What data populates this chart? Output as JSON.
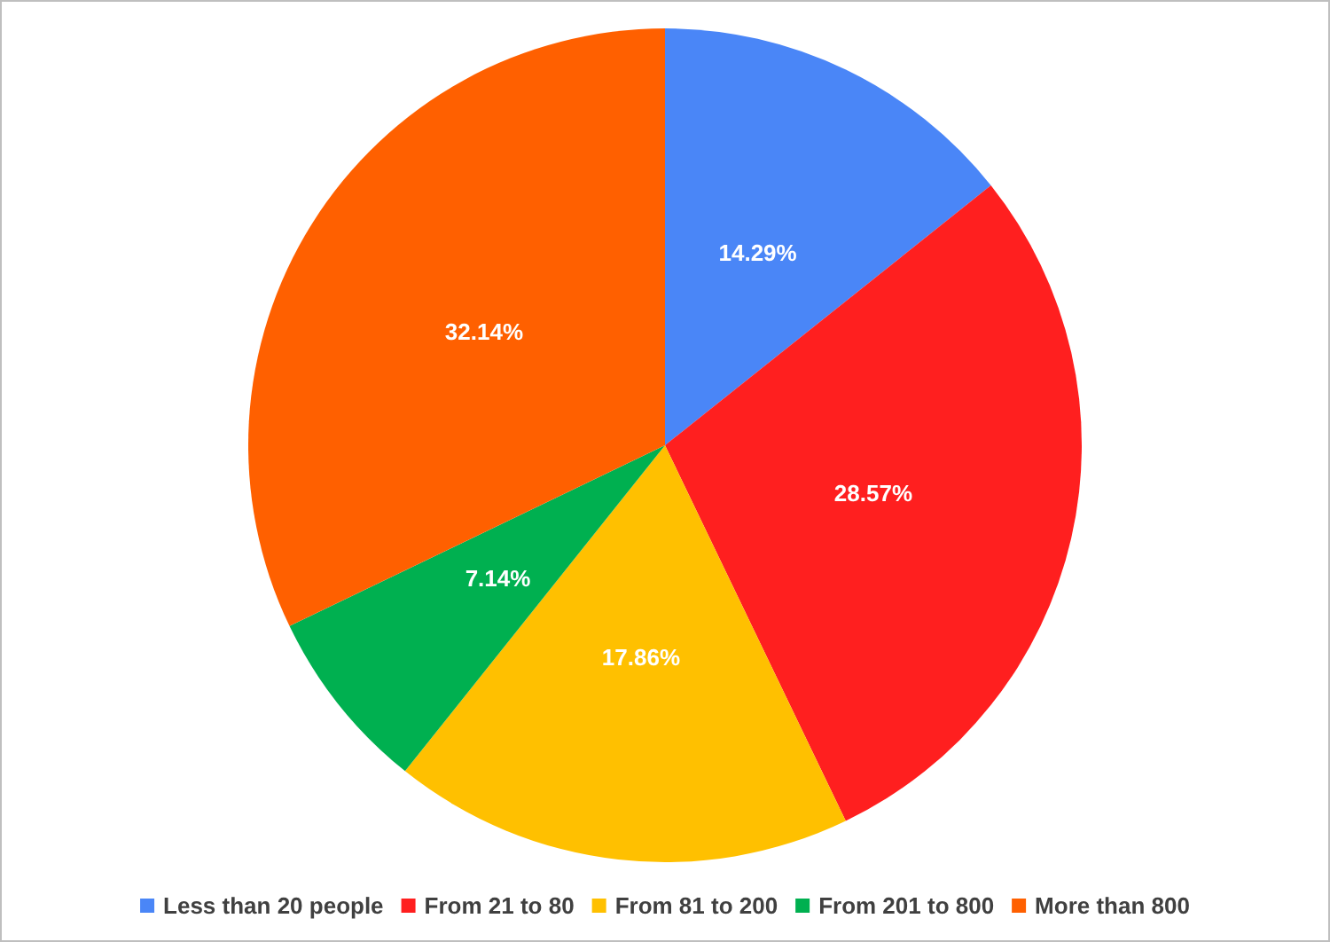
{
  "chart_data": {
    "type": "pie",
    "categories": [
      "Less than 20 people",
      "From 21 to 80",
      "From 81 to 200",
      "From 201 to 800",
      "More than 800"
    ],
    "values": [
      14.29,
      28.57,
      17.86,
      7.14,
      32.14
    ],
    "value_labels": [
      "14.29%",
      "28.57%",
      "17.86%",
      "7.14%",
      "32.14%"
    ],
    "colors": [
      "#4a86f7",
      "#ff1f1f",
      "#ffc000",
      "#00b050",
      "#ff6000"
    ],
    "legend": "bottom"
  }
}
